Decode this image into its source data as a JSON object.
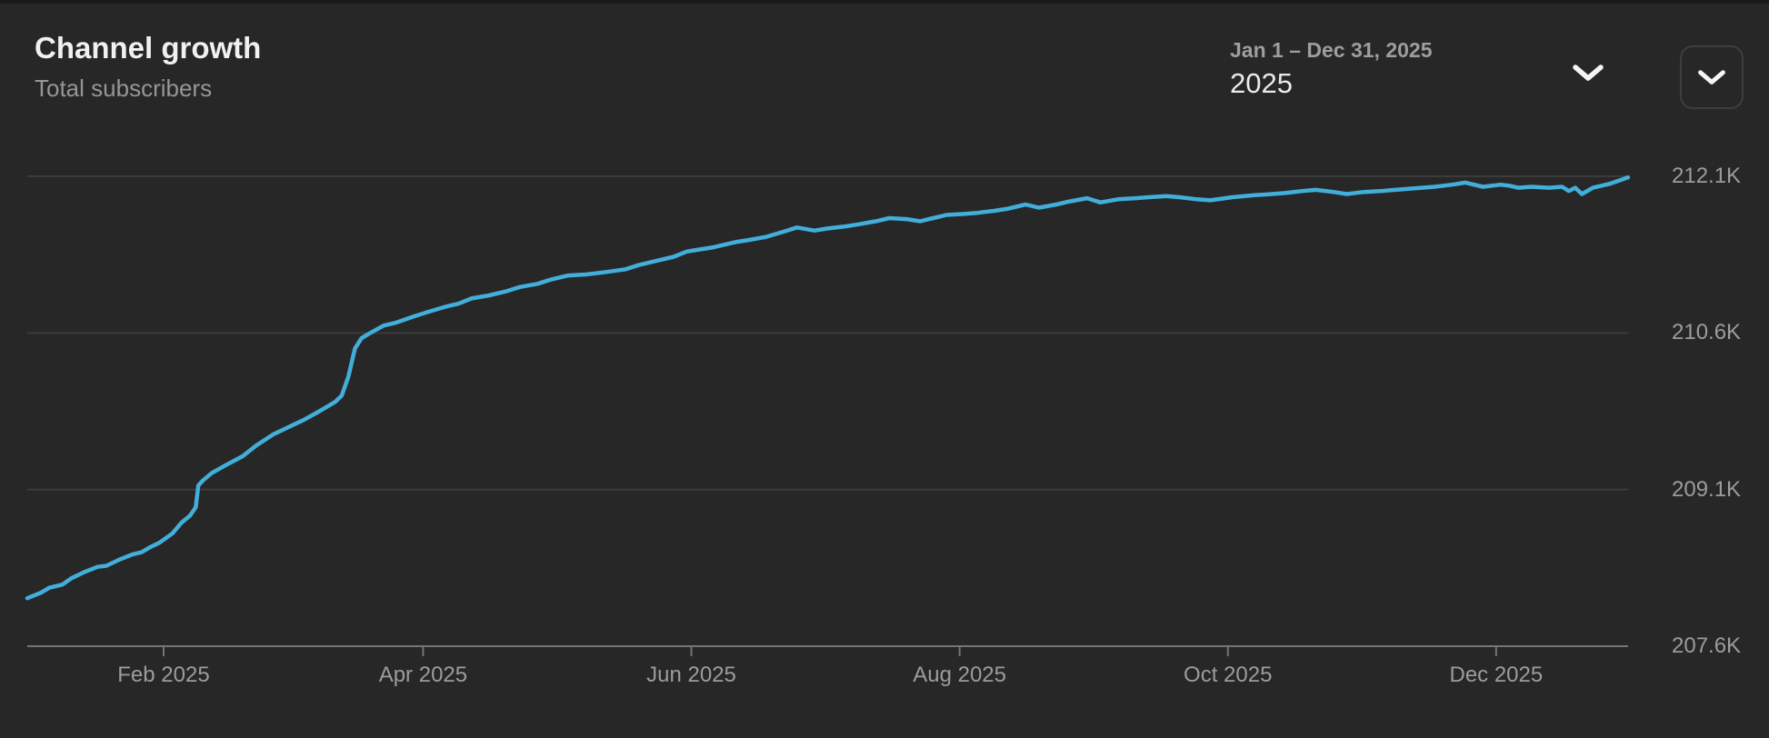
{
  "header": {
    "title": "Channel growth",
    "subtitle": "Total subscribers"
  },
  "date_picker": {
    "range_label": "Jan 1 – Dec 31, 2025",
    "selected_value": "2025",
    "icon": "chevron-down"
  },
  "collapse_button": {
    "icon": "chevron-down"
  },
  "colors": {
    "background": "#272727",
    "top_divider": "#1a1a1a",
    "line": "#42aeda",
    "gridline": "#3b3b3b",
    "axis": "#757575",
    "text_primary": "#f1f1f1",
    "text_secondary": "#9c9c9c"
  },
  "chart_data": {
    "type": "line",
    "title": "Channel growth",
    "series_name": "Total subscribers",
    "x_unit": "day of year 2025",
    "x_range_days": [
      0,
      364
    ],
    "ylim_k": [
      207.6,
      212.1
    ],
    "grid": "horizontal only",
    "legend_position": "none",
    "y_axis_side": "right",
    "y_tick_labels": [
      "212.1K",
      "210.6K",
      "209.1K",
      "207.6K"
    ],
    "y_tick_values_k": [
      212.1,
      210.6,
      209.1,
      207.6
    ],
    "x_tick_labels": [
      "Feb 2025",
      "Apr 2025",
      "Jun 2025",
      "Aug 2025",
      "Oct 2025",
      "Dec 2025"
    ],
    "x_tick_days": [
      31,
      90,
      151,
      212,
      273,
      334
    ],
    "points_day_subscribersK": [
      [
        0,
        208.06
      ],
      [
        3,
        208.11
      ],
      [
        5,
        208.16
      ],
      [
        8,
        208.19
      ],
      [
        10,
        208.25
      ],
      [
        13,
        208.31
      ],
      [
        16,
        208.36
      ],
      [
        18,
        208.37
      ],
      [
        21,
        208.43
      ],
      [
        24,
        208.48
      ],
      [
        26,
        208.5
      ],
      [
        28,
        208.55
      ],
      [
        30,
        208.59
      ],
      [
        33,
        208.68
      ],
      [
        35,
        208.78
      ],
      [
        37,
        208.85
      ],
      [
        38.3,
        208.93
      ],
      [
        38.9,
        209.14
      ],
      [
        40,
        209.19
      ],
      [
        42,
        209.26
      ],
      [
        45,
        209.33
      ],
      [
        49,
        209.42
      ],
      [
        52,
        209.52
      ],
      [
        56,
        209.63
      ],
      [
        59,
        209.69
      ],
      [
        63,
        209.77
      ],
      [
        66,
        209.84
      ],
      [
        68,
        209.89
      ],
      [
        70,
        209.94
      ],
      [
        71.5,
        210.0
      ],
      [
        73,
        210.18
      ],
      [
        74.5,
        210.45
      ],
      [
        76,
        210.55
      ],
      [
        78,
        210.6
      ],
      [
        81,
        210.67
      ],
      [
        84,
        210.7
      ],
      [
        88,
        210.76
      ],
      [
        91,
        210.8
      ],
      [
        95,
        210.85
      ],
      [
        98,
        210.88
      ],
      [
        101,
        210.93
      ],
      [
        105,
        210.96
      ],
      [
        109,
        211.0
      ],
      [
        112,
        211.04
      ],
      [
        116,
        211.07
      ],
      [
        119,
        211.11
      ],
      [
        123,
        211.15
      ],
      [
        127,
        211.16
      ],
      [
        131,
        211.18
      ],
      [
        136,
        211.21
      ],
      [
        139,
        211.25
      ],
      [
        143,
        211.29
      ],
      [
        147,
        211.33
      ],
      [
        150,
        211.38
      ],
      [
        156,
        211.42
      ],
      [
        161,
        211.47
      ],
      [
        164,
        211.49
      ],
      [
        168,
        211.52
      ],
      [
        172,
        211.57
      ],
      [
        175,
        211.61
      ],
      [
        179,
        211.58
      ],
      [
        182,
        211.6
      ],
      [
        186,
        211.62
      ],
      [
        189,
        211.64
      ],
      [
        193,
        211.67
      ],
      [
        196,
        211.7
      ],
      [
        200,
        211.69
      ],
      [
        203,
        211.67
      ],
      [
        206,
        211.7
      ],
      [
        209,
        211.73
      ],
      [
        213,
        211.74
      ],
      [
        216,
        211.75
      ],
      [
        220,
        211.77
      ],
      [
        223,
        211.79
      ],
      [
        227,
        211.83
      ],
      [
        230,
        211.8
      ],
      [
        234,
        211.83
      ],
      [
        237,
        211.86
      ],
      [
        241,
        211.89
      ],
      [
        244,
        211.85
      ],
      [
        248,
        211.88
      ],
      [
        252,
        211.89
      ],
      [
        255,
        211.9
      ],
      [
        259,
        211.91
      ],
      [
        262,
        211.9
      ],
      [
        266,
        211.88
      ],
      [
        269,
        211.87
      ],
      [
        274,
        211.9
      ],
      [
        279,
        211.92
      ],
      [
        283,
        211.93
      ],
      [
        286,
        211.94
      ],
      [
        290,
        211.96
      ],
      [
        293,
        211.97
      ],
      [
        297,
        211.95
      ],
      [
        300,
        211.93
      ],
      [
        304,
        211.95
      ],
      [
        308,
        211.96
      ],
      [
        314,
        211.98
      ],
      [
        320,
        212.0
      ],
      [
        324,
        212.02
      ],
      [
        327,
        212.04
      ],
      [
        331,
        212.0
      ],
      [
        335,
        212.02
      ],
      [
        337,
        212.01
      ],
      [
        339,
        211.99
      ],
      [
        342,
        212.0
      ],
      [
        346,
        211.99
      ],
      [
        349,
        212.0
      ],
      [
        350.5,
        211.96
      ],
      [
        352,
        211.99
      ],
      [
        353.5,
        211.93
      ],
      [
        356,
        211.99
      ],
      [
        358,
        212.01
      ],
      [
        360,
        212.03
      ],
      [
        362,
        212.06
      ],
      [
        364,
        212.09
      ]
    ]
  }
}
